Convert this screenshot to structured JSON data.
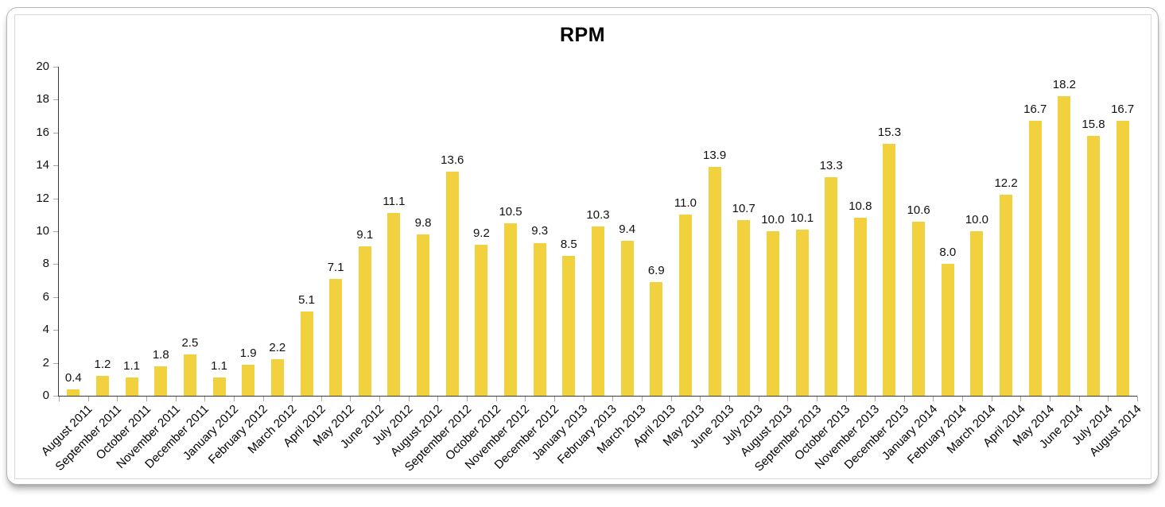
{
  "chart_data": {
    "type": "bar",
    "title": "RPM",
    "categories": [
      "August 2011",
      "September 2011",
      "October 2011",
      "November 2011",
      "December 2011",
      "January 2012",
      "February 2012",
      "March 2012",
      "April 2012",
      "May 2012",
      "June 2012",
      "July 2012",
      "August 2012",
      "September 2012",
      "October 2012",
      "November 2012",
      "December 2012",
      "January 2013",
      "February 2013",
      "March 2013",
      "April 2013",
      "May 2013",
      "June 2013",
      "July 2013",
      "August 2013",
      "September 2013",
      "October 2013",
      "November 2013",
      "December 2013",
      "January 2014",
      "February 2014",
      "March 2014",
      "April 2014",
      "May 2014",
      "June 2014",
      "July 2014",
      "August 2014"
    ],
    "values": [
      0.4,
      1.2,
      1.1,
      1.8,
      2.5,
      1.1,
      1.9,
      2.2,
      5.1,
      7.1,
      9.1,
      11.1,
      9.8,
      13.6,
      9.2,
      10.5,
      9.3,
      8.5,
      10.3,
      9.4,
      6.9,
      11.0,
      13.9,
      10.7,
      10.0,
      10.1,
      13.3,
      10.8,
      15.3,
      10.6,
      8.0,
      10.0,
      12.2,
      16.7,
      18.2,
      15.8,
      16.7
    ],
    "value_label_decimals": 1,
    "xlabel": "",
    "ylabel": "",
    "ylim": [
      0,
      20
    ],
    "y_ticks": [
      0,
      2,
      4,
      6,
      8,
      10,
      12,
      14,
      16,
      18,
      20
    ],
    "grid": "off",
    "legend_position": "none",
    "bar_color": "#F2D13E",
    "axis_color": "#3a3a3a",
    "tick_color": "#a9a9a9",
    "text_color": "#111111"
  }
}
